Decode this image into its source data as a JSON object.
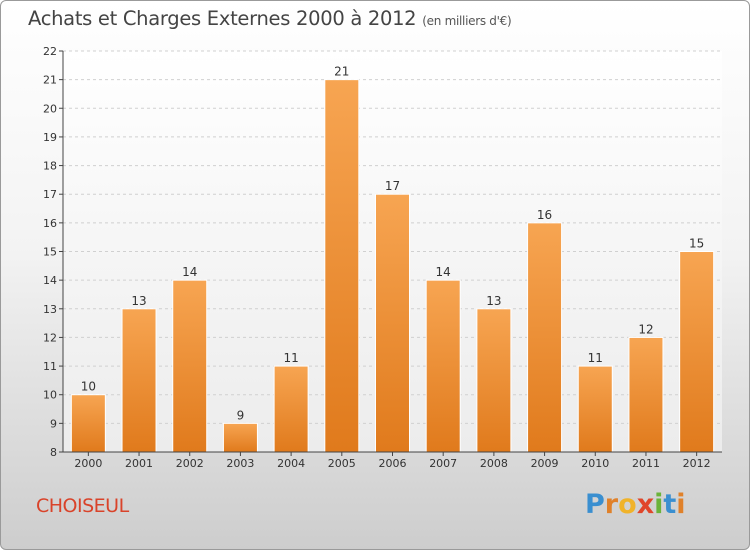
{
  "header": {
    "title": "Achats et Charges Externes 2000 à 2012",
    "subtitle": "(en milliers d'€)"
  },
  "footer": {
    "commune": "CHOISEUL",
    "logo_letters": [
      "P",
      "r",
      "o",
      "x",
      "i",
      "t",
      "i"
    ]
  },
  "colors": {
    "bar_light": "#f7a552",
    "bar_dark": "#e07a1c",
    "commune_text": "#d9432a",
    "logo": [
      "#3a8fd0",
      "#e0812a",
      "#f0b32a",
      "#e0462a",
      "#6bb33a",
      "#3a8fd0",
      "#e0812a"
    ]
  },
  "chart_data": {
    "type": "bar",
    "categories": [
      "2000",
      "2001",
      "2002",
      "2003",
      "2004",
      "2005",
      "2006",
      "2007",
      "2008",
      "2009",
      "2010",
      "2011",
      "2012"
    ],
    "values": [
      10,
      13,
      14,
      9,
      11,
      21,
      17,
      14,
      13,
      16,
      11,
      12,
      15
    ],
    "data_labels": [
      "10",
      "13",
      "14",
      "9",
      "11",
      "21",
      "17",
      "14",
      "13",
      "16",
      "11",
      "12",
      "15"
    ],
    "title": "Achats et Charges Externes 2000 à 2012",
    "xlabel": "",
    "ylabel": "",
    "ylim": [
      8,
      22
    ],
    "yticks": [
      "8",
      "9",
      "10",
      "11",
      "12",
      "13",
      "14",
      "15",
      "16",
      "17",
      "18",
      "19",
      "20",
      "21",
      "22"
    ],
    "grid": true
  }
}
